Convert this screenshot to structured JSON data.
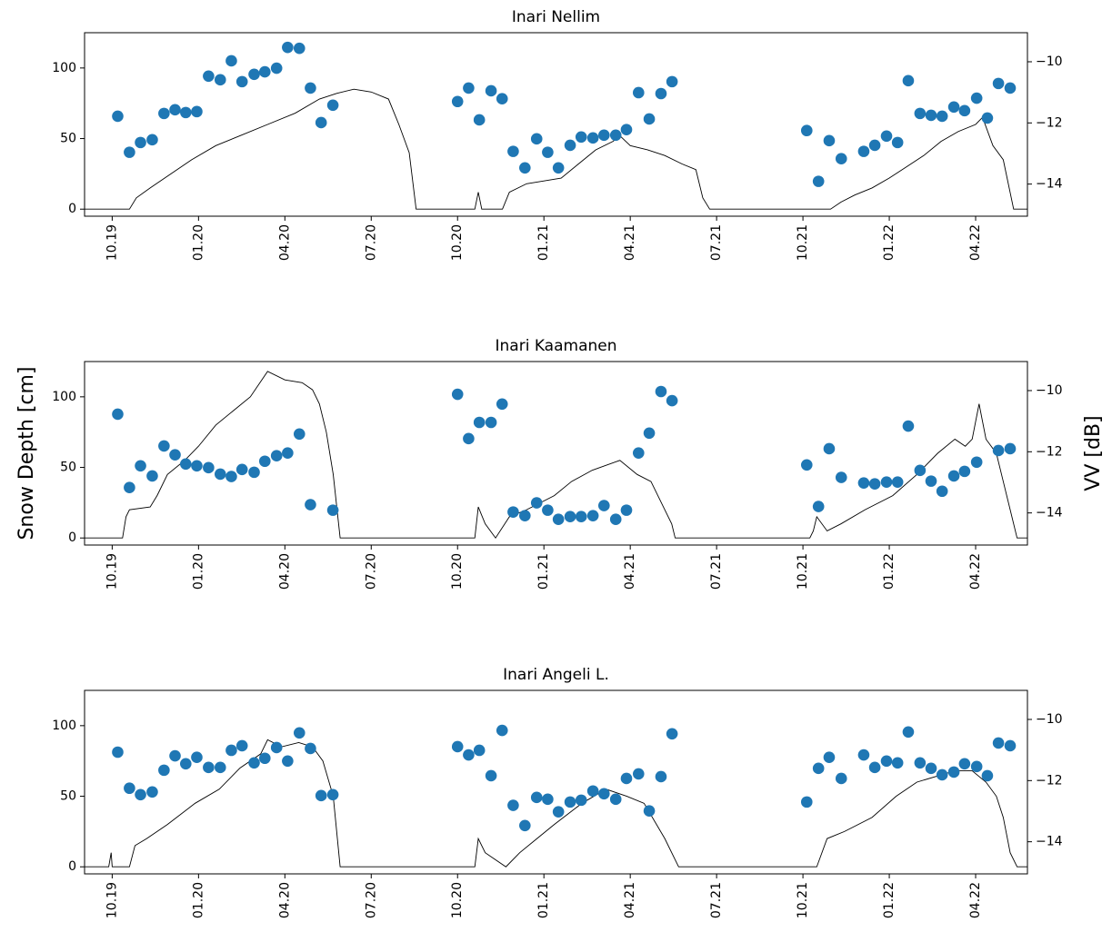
{
  "chart_data": [
    {
      "type": "combo",
      "title": "Inari Nellim",
      "xlim": [
        2019.67,
        2022.4
      ],
      "xticks": [
        {
          "value": 2019.75,
          "label": "10.19"
        },
        {
          "value": 2020.0,
          "label": "01.20"
        },
        {
          "value": 2020.25,
          "label": "04.20"
        },
        {
          "value": 2020.5,
          "label": "07.20"
        },
        {
          "value": 2020.75,
          "label": "10.20"
        },
        {
          "value": 2021.0,
          "label": "01.21"
        },
        {
          "value": 2021.25,
          "label": "04.21"
        },
        {
          "value": 2021.5,
          "label": "07.21"
        },
        {
          "value": 2021.75,
          "label": "10.21"
        },
        {
          "value": 2022.0,
          "label": "01.22"
        },
        {
          "value": 2022.25,
          "label": "04.22"
        }
      ],
      "ylim": [
        -5,
        125
      ],
      "yticks": [
        0,
        50,
        100
      ],
      "y2lim": [
        -15.05,
        -9.05
      ],
      "y2ticks": [
        {
          "value": -14,
          "label": "−14"
        },
        {
          "value": -12,
          "label": "−12"
        },
        {
          "value": -10,
          "label": "−10"
        }
      ],
      "series": [
        {
          "type": "line",
          "color": "#000000",
          "x": [
            2019.67,
            2019.8,
            2019.82,
            2019.86,
            2019.92,
            2019.98,
            2020.05,
            2020.12,
            2020.2,
            2020.28,
            2020.35,
            2020.4,
            2020.45,
            2020.5,
            2020.55,
            2020.58,
            2020.61,
            2020.63,
            2020.8,
            2020.81,
            2020.82,
            2020.88,
            2020.9,
            2020.95,
            2021.0,
            2021.05,
            2021.1,
            2021.15,
            2021.2,
            2021.22,
            2021.25,
            2021.3,
            2021.35,
            2021.4,
            2021.44,
            2021.46,
            2021.48,
            2021.83,
            2021.86,
            2021.9,
            2021.95,
            2022.0,
            2022.05,
            2022.1,
            2022.15,
            2022.2,
            2022.25,
            2022.27,
            2022.3,
            2022.33,
            2022.36,
            2022.4
          ],
          "values": [
            0,
            0,
            8,
            15,
            25,
            35,
            45,
            52,
            60,
            68,
            78,
            82,
            85,
            83,
            78,
            60,
            40,
            0,
            0,
            12,
            0,
            0,
            12,
            18,
            20,
            22,
            32,
            42,
            48,
            52,
            45,
            42,
            38,
            32,
            28,
            8,
            0,
            0,
            5,
            10,
            15,
            22,
            30,
            38,
            48,
            55,
            60,
            65,
            45,
            35,
            0,
            0
          ]
        },
        {
          "type": "scatter",
          "color": "#1f77b4",
          "axis": "y2",
          "x": [
            2019.766,
            2019.8,
            2019.832,
            2019.866,
            2019.9,
            2019.932,
            2019.963,
            2019.995,
            2020.029,
            2020.063,
            2020.095,
            2020.126,
            2020.161,
            2020.192,
            2020.226,
            2020.258,
            2020.292,
            2020.324,
            2020.355,
            2020.389,
            2020.75,
            2020.782,
            2020.813,
            2020.847,
            2020.879,
            2020.911,
            2020.945,
            2020.979,
            2021.011,
            2021.042,
            2021.076,
            2021.108,
            2021.142,
            2021.174,
            2021.208,
            2021.239,
            2021.274,
            2021.305,
            2021.339,
            2021.371,
            2021.761,
            2021.795,
            2021.826,
            2021.861,
            2021.926,
            2021.958,
            2021.992,
            2022.024,
            2022.055,
            2022.089,
            2022.121,
            2022.153,
            2022.187,
            2022.218,
            2022.253,
            2022.284,
            2022.316,
            2022.35
          ],
          "values": [
            -11.78,
            -12.96,
            -12.64,
            -12.55,
            -11.69,
            -11.57,
            -11.66,
            -11.63,
            -10.47,
            -10.59,
            -9.97,
            -10.65,
            -10.41,
            -10.33,
            -10.21,
            -9.53,
            -9.56,
            -10.86,
            -11.99,
            -11.42,
            -11.3,
            -10.86,
            -11.9,
            -10.95,
            -11.21,
            -12.93,
            -13.47,
            -12.52,
            -12.96,
            -13.47,
            -12.73,
            -12.46,
            -12.49,
            -12.4,
            -12.4,
            -12.22,
            -11.01,
            -11.87,
            -11.04,
            -10.65,
            -12.25,
            -13.91,
            -12.58,
            -13.17,
            -12.93,
            -12.73,
            -12.43,
            -12.64,
            -10.62,
            -11.69,
            -11.75,
            -11.78,
            -11.48,
            -11.6,
            -11.19,
            -11.84,
            -10.71,
            -10.86
          ]
        }
      ]
    },
    {
      "type": "combo",
      "title": "Inari Kaamanen",
      "ylabel": "Snow Depth [cm]",
      "y2label": "VV [dB]",
      "xlim": [
        2019.67,
        2022.4
      ],
      "xticks": [
        {
          "value": 2019.75,
          "label": "10.19"
        },
        {
          "value": 2020.0,
          "label": "01.20"
        },
        {
          "value": 2020.25,
          "label": "04.20"
        },
        {
          "value": 2020.5,
          "label": "07.20"
        },
        {
          "value": 2020.75,
          "label": "10.20"
        },
        {
          "value": 2021.0,
          "label": "01.21"
        },
        {
          "value": 2021.25,
          "label": "04.21"
        },
        {
          "value": 2021.5,
          "label": "07.21"
        },
        {
          "value": 2021.75,
          "label": "10.21"
        },
        {
          "value": 2022.0,
          "label": "01.22"
        },
        {
          "value": 2022.25,
          "label": "04.22"
        }
      ],
      "ylim": [
        -5,
        125
      ],
      "yticks": [
        0,
        50,
        100
      ],
      "y2lim": [
        -15.05,
        -9.05
      ],
      "y2ticks": [
        {
          "value": -14,
          "label": "−14"
        },
        {
          "value": -12,
          "label": "−12"
        },
        {
          "value": -10,
          "label": "−10"
        }
      ],
      "series": [
        {
          "type": "line",
          "color": "#000000",
          "x": [
            2019.67,
            2019.78,
            2019.79,
            2019.8,
            2019.86,
            2019.88,
            2019.91,
            2019.96,
            2020.0,
            2020.05,
            2020.1,
            2020.15,
            2020.2,
            2020.25,
            2020.3,
            2020.33,
            2020.35,
            2020.37,
            2020.39,
            2020.41,
            2020.8,
            2020.81,
            2020.83,
            2020.86,
            2020.9,
            2020.95,
            2021.03,
            2021.08,
            2021.14,
            2021.22,
            2021.27,
            2021.31,
            2021.35,
            2021.37,
            2021.38,
            2021.77,
            2021.78,
            2021.79,
            2021.82,
            2021.86,
            2021.93,
            2022.01,
            2022.08,
            2022.14,
            2022.19,
            2022.22,
            2022.24,
            2022.26,
            2022.28,
            2022.31,
            2022.33,
            2022.35,
            2022.37,
            2022.4
          ],
          "values": [
            0,
            0,
            15,
            20,
            22,
            30,
            45,
            55,
            65,
            80,
            90,
            100,
            118,
            112,
            110,
            105,
            95,
            75,
            45,
            0,
            0,
            22,
            10,
            0,
            15,
            20,
            30,
            40,
            48,
            55,
            45,
            40,
            20,
            10,
            0,
            0,
            5,
            15,
            5,
            10,
            20,
            30,
            45,
            60,
            70,
            65,
            70,
            95,
            70,
            60,
            40,
            20,
            0,
            0
          ]
        },
        {
          "type": "scatter",
          "color": "#1f77b4",
          "axis": "y2",
          "x": [
            2019.766,
            2019.8,
            2019.832,
            2019.866,
            2019.9,
            2019.932,
            2019.963,
            2019.995,
            2020.029,
            2020.063,
            2020.095,
            2020.126,
            2020.161,
            2020.192,
            2020.226,
            2020.258,
            2020.292,
            2020.324,
            2020.389,
            2020.75,
            2020.782,
            2020.813,
            2020.847,
            2020.879,
            2020.911,
            2020.945,
            2020.979,
            2021.011,
            2021.042,
            2021.076,
            2021.108,
            2021.142,
            2021.174,
            2021.208,
            2021.239,
            2021.274,
            2021.305,
            2021.339,
            2021.371,
            2021.761,
            2021.795,
            2021.826,
            2021.861,
            2021.926,
            2021.958,
            2021.992,
            2022.024,
            2022.055,
            2022.089,
            2022.121,
            2022.153,
            2022.187,
            2022.218,
            2022.253,
            2022.316,
            2022.35
          ],
          "values": [
            -10.77,
            -13.17,
            -12.46,
            -12.79,
            -11.81,
            -12.1,
            -12.4,
            -12.46,
            -12.52,
            -12.73,
            -12.81,
            -12.58,
            -12.67,
            -12.31,
            -12.13,
            -12.04,
            -11.42,
            -13.73,
            -13.91,
            -10.12,
            -11.57,
            -11.04,
            -11.04,
            -10.44,
            -13.97,
            -14.09,
            -13.67,
            -13.91,
            -14.21,
            -14.12,
            -14.12,
            -14.09,
            -13.76,
            -14.21,
            -13.91,
            -12.04,
            -11.39,
            -10.03,
            -10.33,
            -12.43,
            -13.79,
            -11.9,
            -12.84,
            -13.02,
            -13.05,
            -12.99,
            -12.99,
            -11.16,
            -12.61,
            -12.96,
            -13.29,
            -12.79,
            -12.64,
            -12.34,
            -11.96,
            -11.9
          ]
        }
      ]
    },
    {
      "type": "combo",
      "title": "Inari Angeli L.",
      "xlim": [
        2019.67,
        2022.4
      ],
      "xticks": [
        {
          "value": 2019.75,
          "label": "10.19"
        },
        {
          "value": 2020.0,
          "label": "01.20"
        },
        {
          "value": 2020.25,
          "label": "04.20"
        },
        {
          "value": 2020.5,
          "label": "07.20"
        },
        {
          "value": 2020.75,
          "label": "10.20"
        },
        {
          "value": 2021.0,
          "label": "01.21"
        },
        {
          "value": 2021.25,
          "label": "04.21"
        },
        {
          "value": 2021.5,
          "label": "07.21"
        },
        {
          "value": 2021.75,
          "label": "10.21"
        },
        {
          "value": 2022.0,
          "label": "01.22"
        },
        {
          "value": 2022.25,
          "label": "04.22"
        }
      ],
      "ylim": [
        -5,
        125
      ],
      "yticks": [
        0,
        50,
        100
      ],
      "y2lim": [
        -15.05,
        -9.05
      ],
      "y2ticks": [
        {
          "value": -14,
          "label": "−14"
        },
        {
          "value": -12,
          "label": "−12"
        },
        {
          "value": -10,
          "label": "−10"
        }
      ],
      "series": [
        {
          "type": "line",
          "color": "#000000",
          "x": [
            2019.67,
            2019.74,
            2019.747,
            2019.75,
            2019.8,
            2019.816,
            2019.85,
            2019.91,
            2019.99,
            2020.06,
            2020.12,
            2020.18,
            2020.2,
            2020.24,
            2020.29,
            2020.33,
            2020.36,
            2020.39,
            2020.41,
            2020.8,
            2020.81,
            2020.83,
            2020.86,
            2020.89,
            2020.93,
            2020.98,
            2021.03,
            2021.11,
            2021.18,
            2021.24,
            2021.29,
            2021.35,
            2021.38,
            2021.39,
            2021.79,
            2021.82,
            2021.87,
            2021.95,
            2022.02,
            2022.08,
            2022.19,
            2022.24,
            2022.28,
            2022.31,
            2022.33,
            2022.35,
            2022.37,
            2022.4
          ],
          "values": [
            0,
            0,
            10,
            0,
            0,
            15,
            20,
            30,
            45,
            55,
            70,
            80,
            90,
            85,
            88,
            85,
            75,
            50,
            0,
            0,
            20,
            10,
            5,
            0,
            10,
            20,
            30,
            45,
            55,
            50,
            45,
            20,
            5,
            0,
            0,
            20,
            25,
            35,
            50,
            60,
            68,
            68,
            60,
            50,
            35,
            10,
            0,
            0
          ]
        },
        {
          "type": "scatter",
          "color": "#1f77b4",
          "axis": "y2",
          "x": [
            2019.766,
            2019.8,
            2019.832,
            2019.866,
            2019.9,
            2019.932,
            2019.963,
            2019.995,
            2020.029,
            2020.063,
            2020.095,
            2020.126,
            2020.161,
            2020.192,
            2020.226,
            2020.258,
            2020.292,
            2020.324,
            2020.355,
            2020.389,
            2020.75,
            2020.782,
            2020.813,
            2020.847,
            2020.879,
            2020.911,
            2020.945,
            2020.979,
            2021.011,
            2021.042,
            2021.076,
            2021.108,
            2021.142,
            2021.174,
            2021.208,
            2021.239,
            2021.274,
            2021.305,
            2021.339,
            2021.371,
            2021.761,
            2021.795,
            2021.826,
            2021.861,
            2021.926,
            2021.958,
            2021.992,
            2022.024,
            2022.055,
            2022.089,
            2022.121,
            2022.153,
            2022.187,
            2022.218,
            2022.253,
            2022.284,
            2022.316,
            2022.35
          ],
          "values": [
            -11.07,
            -12.25,
            -12.46,
            -12.37,
            -11.66,
            -11.19,
            -11.45,
            -11.24,
            -11.57,
            -11.57,
            -11.01,
            -10.86,
            -11.42,
            -11.27,
            -10.92,
            -11.36,
            -10.44,
            -10.95,
            -12.49,
            -12.46,
            -10.89,
            -11.16,
            -11.01,
            -11.84,
            -10.36,
            -12.81,
            -13.47,
            -12.55,
            -12.61,
            -13.02,
            -12.7,
            -12.64,
            -12.34,
            -12.43,
            -12.61,
            -11.93,
            -11.78,
            -12.99,
            -11.87,
            -10.47,
            -12.7,
            -11.6,
            -11.24,
            -11.93,
            -11.16,
            -11.57,
            -11.36,
            -11.42,
            -10.41,
            -11.42,
            -11.6,
            -11.81,
            -11.72,
            -11.45,
            -11.54,
            -11.84,
            -10.77,
            -10.86
          ]
        }
      ]
    }
  ]
}
